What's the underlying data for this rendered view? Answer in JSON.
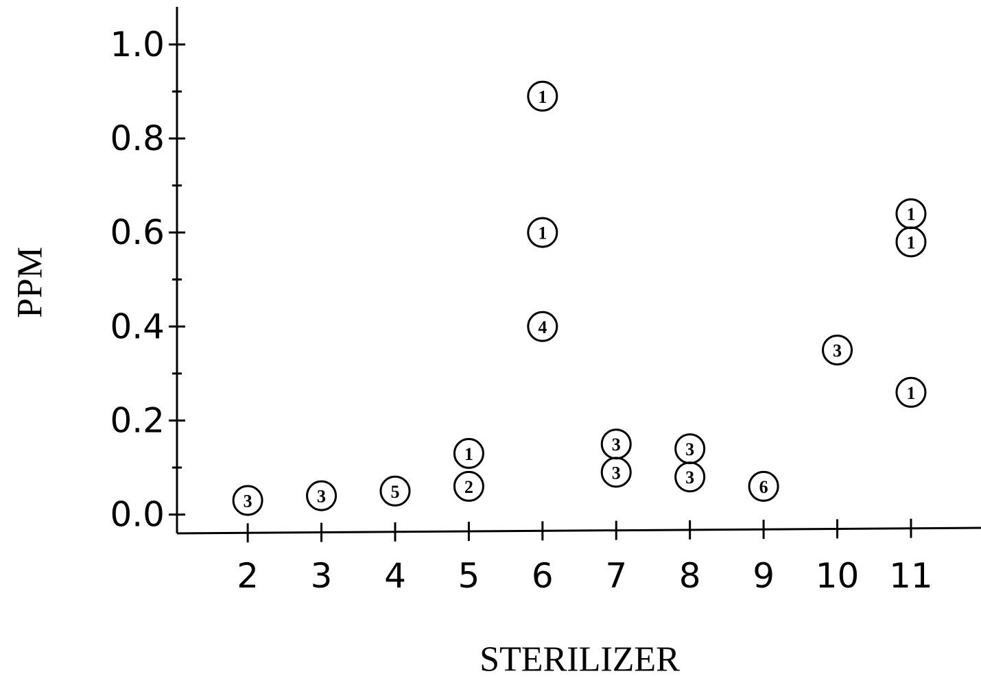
{
  "chart_data": {
    "type": "scatter",
    "xlabel": "STERILIZER",
    "ylabel": "PPM",
    "xlim": [
      1.04,
      11.95
    ],
    "ylim": [
      -0.04,
      1.08
    ],
    "xticks": [
      2,
      3,
      4,
      5,
      6,
      7,
      8,
      9,
      10,
      11
    ],
    "yticks": [
      {
        "value": 0,
        "label": "0.0"
      },
      {
        "value": 0.2,
        "label": "0.2"
      },
      {
        "value": 0.4,
        "label": "0.4"
      },
      {
        "value": 0.6,
        "label": "0.6"
      },
      {
        "value": 0.8,
        "label": "0.8"
      },
      {
        "value": 1,
        "label": "1.0"
      }
    ],
    "yminorticks": [
      0.1,
      0.3,
      0.5,
      0.7,
      0.9
    ],
    "color": "#000000",
    "x": [
      2,
      3,
      4,
      5,
      5,
      6,
      6,
      6,
      7,
      7,
      8,
      8,
      9,
      10,
      11,
      11,
      11
    ],
    "values": [
      0.03,
      0.04,
      0.05,
      0.13,
      0.06,
      0.89,
      0.6,
      0.4,
      0.15,
      0.09,
      0.14,
      0.08,
      0.06,
      0.35,
      0.64,
      0.58,
      0.26
    ],
    "point_labels": [
      "3",
      "3",
      "5",
      "1",
      "2",
      "1",
      "1",
      "4",
      "3",
      "3",
      "3",
      "3",
      "6",
      "3",
      "1",
      "1",
      "1"
    ]
  }
}
